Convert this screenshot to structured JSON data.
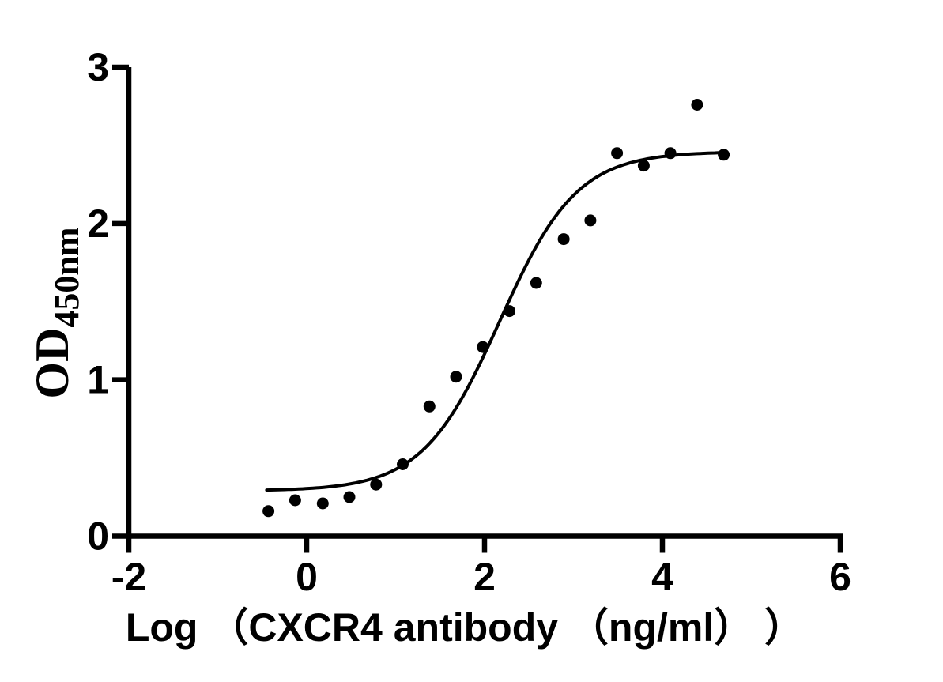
{
  "chart_data": {
    "type": "scatter",
    "title": "",
    "xlabel": "Log （CXCR4 antibody （ng/ml） ）",
    "ylabel_base": "OD",
    "ylabel_sub": "450nm",
    "xlim": [
      -2,
      6
    ],
    "ylim": [
      0,
      3
    ],
    "xticks": [
      -2,
      0,
      2,
      4,
      6
    ],
    "yticks": [
      0,
      1,
      2,
      3
    ],
    "grid": false,
    "legend": "none",
    "marker_color": "#000000",
    "curve_color": "#000000",
    "axis_color": "#000000",
    "x": [
      -0.43,
      -0.13,
      0.18,
      0.48,
      0.78,
      1.08,
      1.38,
      1.68,
      1.98,
      2.28,
      2.58,
      2.89,
      3.19,
      3.49,
      3.79,
      4.09,
      4.39,
      4.69
    ],
    "y": [
      0.16,
      0.23,
      0.21,
      0.25,
      0.33,
      0.46,
      0.83,
      1.02,
      1.21,
      1.44,
      1.62,
      1.9,
      2.02,
      2.45,
      2.37,
      2.45,
      2.76,
      2.44
    ],
    "fit_curve": {
      "model": "4PL-sigmoid",
      "bottom": 0.29,
      "top": 2.46,
      "logEC50": 2.17,
      "hill": 1.0,
      "x_start": -0.45,
      "x_end": 4.69
    }
  }
}
